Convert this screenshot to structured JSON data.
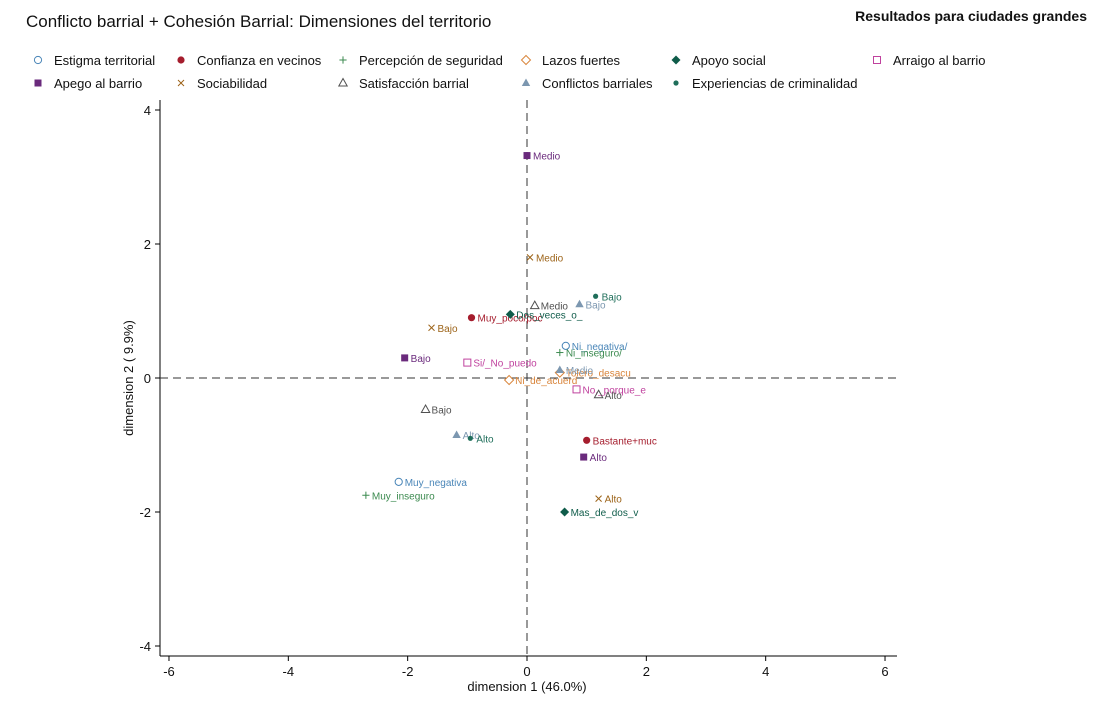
{
  "chart_data": {
    "type": "scatter",
    "title": "Conflicto barrial + Cohesión Barrial: Dimensiones del territorio",
    "subtitle": "Resultados para ciudades grandes",
    "xlabel": "dimension 1 (46.0%)",
    "ylabel": "dimension 2 ( 9.9%)",
    "xlim": [
      -6,
      6
    ],
    "ylim": [
      -4,
      4
    ],
    "xticks": [
      "-6",
      "-4",
      "-2",
      "0",
      "2",
      "4",
      "6"
    ],
    "yticks": [
      "4",
      "2",
      "0",
      "-2",
      "-4"
    ],
    "grid": false,
    "reference_lines": "dashed at x=0 and y=0",
    "legend_position": "top",
    "series": [
      {
        "name": "Estigma territorial",
        "color": "#4a86b8",
        "marker": "circle-open",
        "points": [
          {
            "x": 0.65,
            "y": 0.48,
            "label": "Ni_negativa/"
          },
          {
            "x": -2.15,
            "y": -1.55,
            "label": "Muy_negativa"
          }
        ]
      },
      {
        "name": "Confianza en vecinos",
        "color": "#a51d2d",
        "marker": "circle-filled",
        "points": [
          {
            "x": -0.93,
            "y": 0.9,
            "label": "Muy_poco/poc"
          },
          {
            "x": 1.0,
            "y": -0.93,
            "label": "Bastante+muc"
          }
        ]
      },
      {
        "name": "Percepción de seguridad",
        "color": "#3b8a4f",
        "marker": "plus",
        "points": [
          {
            "x": 0.55,
            "y": 0.38,
            "label": "Ni_inseguro/"
          },
          {
            "x": -2.7,
            "y": -1.75,
            "label": "Muy_inseguro"
          }
        ]
      },
      {
        "name": "Lazos fuertes",
        "color": "#d9853b",
        "marker": "diamond-open",
        "points": [
          {
            "x": -0.3,
            "y": -0.03,
            "label": "Ni_de_acuerd"
          },
          {
            "x": 0.55,
            "y": 0.08,
            "label": "Tolero_desacu"
          }
        ]
      },
      {
        "name": "Apoyo social",
        "color": "#0f5c4a",
        "marker": "diamond-filled",
        "points": [
          {
            "x": -0.28,
            "y": 0.95,
            "label": "Dos_veces_o_"
          },
          {
            "x": 0.63,
            "y": -2.0,
            "label": "Mas_de_dos_v"
          }
        ]
      },
      {
        "name": "Arraigo al barrio",
        "color": "#c0429e",
        "marker": "square-open",
        "points": [
          {
            "x": -1.0,
            "y": 0.23,
            "label": "Si/_No_puedo"
          },
          {
            "x": 0.83,
            "y": -0.17,
            "label": "No,_porque_e"
          }
        ]
      },
      {
        "name": "Apego al barrio",
        "color": "#6a2a7c",
        "marker": "square-filled",
        "points": [
          {
            "x": 0.0,
            "y": 3.32,
            "label": "Medio"
          },
          {
            "x": -2.05,
            "y": 0.3,
            "label": "Bajo"
          },
          {
            "x": 0.95,
            "y": -1.18,
            "label": "Alto"
          }
        ]
      },
      {
        "name": "Sociabilidad",
        "color": "#9c6318",
        "marker": "x",
        "points": [
          {
            "x": 0.05,
            "y": 1.8,
            "label": "Medio"
          },
          {
            "x": -1.6,
            "y": 0.75,
            "label": "Bajo"
          },
          {
            "x": 1.2,
            "y": -1.8,
            "label": "Alto"
          }
        ]
      },
      {
        "name": "Satisfacción barrial",
        "color": "#505050",
        "marker": "triangle-open",
        "points": [
          {
            "x": 0.13,
            "y": 1.08,
            "label": "Medio"
          },
          {
            "x": -1.7,
            "y": -0.47,
            "label": "Bajo"
          },
          {
            "x": 1.2,
            "y": -0.25,
            "label": "Alto"
          }
        ]
      },
      {
        "name": "Conflictos barriales",
        "color": "#7c97b0",
        "marker": "triangle-filled",
        "points": [
          {
            "x": 0.55,
            "y": 0.12,
            "label": "Medio"
          },
          {
            "x": 0.88,
            "y": 1.1,
            "label": "Bajo"
          },
          {
            "x": -1.18,
            "y": -0.85,
            "label": "Alto"
          }
        ]
      },
      {
        "name": "Experiencias de criminalidad",
        "color": "#1f6e5a",
        "marker": "dot",
        "points": [
          {
            "x": 1.15,
            "y": 1.22,
            "label": "Bajo"
          },
          {
            "x": -0.95,
            "y": -0.9,
            "label": "Alto"
          }
        ]
      }
    ]
  }
}
